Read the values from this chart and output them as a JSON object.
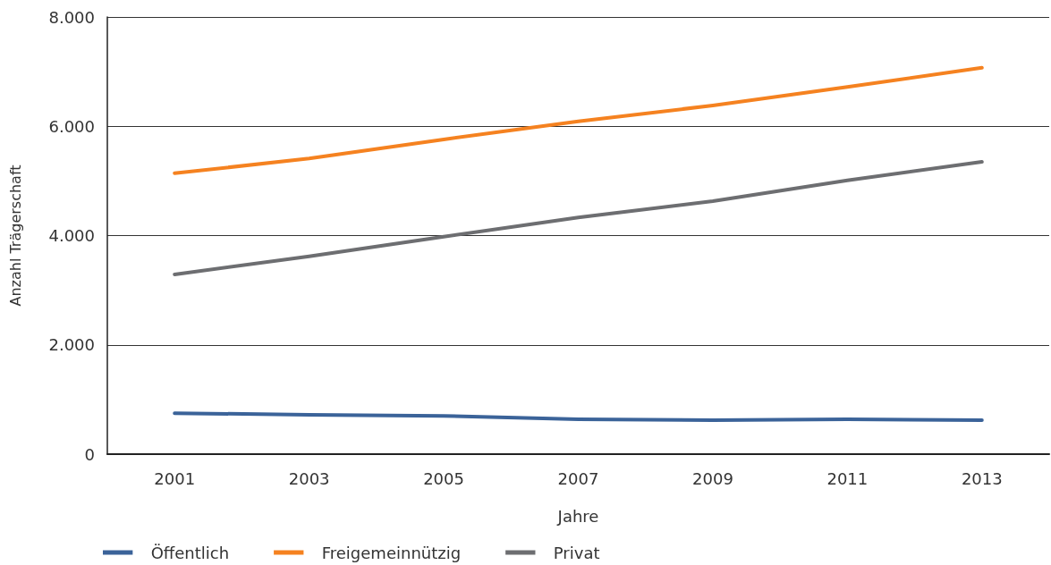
{
  "chart_data": {
    "type": "line",
    "xlabel": "Jahre",
    "ylabel": "Anzahl Trägerschaft",
    "categories": [
      "2001",
      "2003",
      "2005",
      "2007",
      "2009",
      "2011",
      "2013"
    ],
    "series": [
      {
        "name": "Öffentlich",
        "color": "#3b6399",
        "values": [
          750,
          720,
          700,
          640,
          620,
          640,
          620
        ]
      },
      {
        "name": "Freigemeinnützig",
        "color": "#f58220",
        "values": [
          5140,
          5410,
          5760,
          6090,
          6380,
          6720,
          7070
        ]
      },
      {
        "name": "Privat",
        "color": "#6d6e71",
        "values": [
          3290,
          3620,
          3980,
          4330,
          4630,
          5010,
          5350
        ]
      }
    ],
    "ylim": [
      0,
      8000
    ],
    "yticks": [
      0,
      {
        "value": 2000,
        "label": "2.000"
      },
      {
        "value": 4000,
        "label": "4.000"
      },
      {
        "value": 6000,
        "label": "6.000"
      },
      {
        "value": 8000,
        "label": "8.000"
      }
    ],
    "grid": "y",
    "legend": "bottom left",
    "marker": "none",
    "line_style": "solid"
  }
}
